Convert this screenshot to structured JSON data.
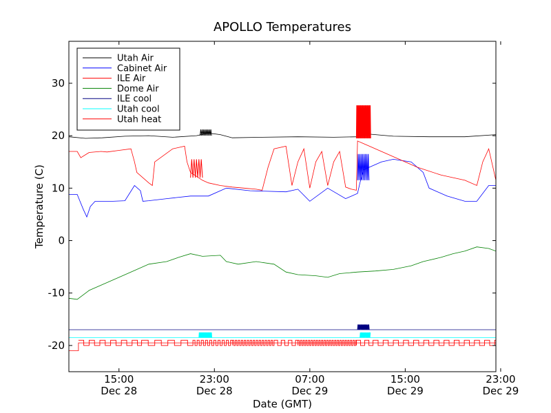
{
  "chart_data": {
    "type": "line",
    "title": "APOLLO Temperatures",
    "xlabel": "Date (GMT)",
    "ylabel": "Temperature (C)",
    "xlim": [
      10.8,
      46.6
    ],
    "ylim": [
      -25,
      38
    ],
    "yticks": [
      {
        "value": 30,
        "label": "30"
      },
      {
        "value": 20,
        "label": "20"
      },
      {
        "value": 10,
        "label": "10"
      },
      {
        "value": 0,
        "label": "0"
      },
      {
        "value": -10,
        "label": "-10"
      },
      {
        "value": -20,
        "label": "-20"
      }
    ],
    "xticks": [
      {
        "hour": 15,
        "time": "15:00",
        "date": "Dec 28"
      },
      {
        "hour": 23,
        "time": "23:00",
        "date": "Dec 28"
      },
      {
        "hour": 31,
        "time": "07:00",
        "date": "Dec 29"
      },
      {
        "hour": 39,
        "time": "15:00",
        "date": "Dec 29"
      },
      {
        "hour": 47,
        "time": "23:00",
        "date": "Dec 29"
      }
    ],
    "legend_position": "top-left",
    "series": [
      {
        "name": "Utah Air",
        "color": "#000000",
        "x": [
          10.8,
          12.2,
          13.6,
          15.5,
          17.5,
          19.5,
          21.5,
          22.5,
          23.5,
          24.5,
          27.0,
          30.0,
          33.0,
          35.0,
          35.5,
          36.0,
          38.0,
          41.0,
          44.0,
          46.6
        ],
        "y": [
          19.8,
          19.5,
          19.6,
          19.9,
          20.0,
          19.7,
          20.0,
          20.5,
          20.2,
          19.6,
          19.7,
          19.8,
          19.7,
          19.8,
          20.0,
          20.3,
          19.9,
          19.8,
          19.8,
          20.2
        ]
      },
      {
        "name": "Cabinet Air",
        "color": "#0000ff",
        "x": [
          10.8,
          11.5,
          12.0,
          12.3,
          12.6,
          13.0,
          14.5,
          15.5,
          16.3,
          16.8,
          17.0,
          17.5,
          19.0,
          21.0,
          22.5,
          23.5,
          24.0,
          26.0,
          29.0,
          30.0,
          31.0,
          32.5,
          34.0,
          35.0,
          35.2,
          35.5,
          36.0,
          37.0,
          38.0,
          39.5,
          40.5,
          41.0,
          41.5,
          42.5,
          44.0,
          45.0,
          46.0,
          46.6
        ],
        "y": [
          8.8,
          8.8,
          6.0,
          4.5,
          6.5,
          7.5,
          7.5,
          7.6,
          10.5,
          9.5,
          7.5,
          7.6,
          8.0,
          8.5,
          8.5,
          9.5,
          10.0,
          9.5,
          9.3,
          9.8,
          7.5,
          10.0,
          8.0,
          9.0,
          11.0,
          13.5,
          14.0,
          15.0,
          15.5,
          15.0,
          13.0,
          10.0,
          9.5,
          8.5,
          7.5,
          7.5,
          10.5,
          10.5
        ]
      },
      {
        "name": "ILE Air",
        "color": "#ff0000",
        "x": [
          10.8,
          11.5,
          11.8,
          12.5,
          13.5,
          14.0,
          15.0,
          16.0,
          16.3,
          16.5,
          17.5,
          17.8,
          18.0,
          19.5,
          20.5,
          20.7,
          21.0,
          22.0,
          22.5,
          23.5,
          24.5,
          25.5,
          26.5,
          27.0,
          27.5,
          28.0,
          29.0,
          29.5,
          30.0,
          30.5,
          31.0,
          31.5,
          32.0,
          32.5,
          33.0,
          33.5,
          34.0,
          34.5,
          34.9,
          35.0,
          35.5,
          36.0,
          38.0,
          40.0,
          42.0,
          44.0,
          45.0,
          45.5,
          46.0,
          46.6
        ],
        "y": [
          17.0,
          17.0,
          15.8,
          16.8,
          17.0,
          16.9,
          17.2,
          17.5,
          15.0,
          13.0,
          11.0,
          10.5,
          15.0,
          17.5,
          18.0,
          15.0,
          13.0,
          11.5,
          11.0,
          10.5,
          10.2,
          10.0,
          9.8,
          9.6,
          14.0,
          17.5,
          18.0,
          10.5,
          15.0,
          17.5,
          10.0,
          15.0,
          17.0,
          10.5,
          15.0,
          17.0,
          10.2,
          9.8,
          9.6,
          19.0,
          18.5,
          18.0,
          16.0,
          14.0,
          12.5,
          11.5,
          10.5,
          15.0,
          17.5,
          11.5
        ]
      },
      {
        "name": "Dome Air",
        "color": "#008000",
        "x": [
          10.8,
          11.5,
          12.5,
          14.0,
          16.0,
          17.5,
          19.0,
          20.0,
          21.0,
          22.0,
          23.5,
          24.0,
          25.0,
          26.5,
          28.0,
          29.0,
          30.0,
          31.5,
          32.5,
          33.5,
          35.0,
          36.5,
          38.0,
          39.5,
          40.5,
          42.0,
          43.0,
          44.0,
          45.0,
          46.0,
          46.6
        ],
        "y": [
          -11.0,
          -11.2,
          -9.5,
          -8.0,
          -6.0,
          -4.5,
          -4.0,
          -3.2,
          -2.5,
          -3.0,
          -2.8,
          -4.0,
          -4.5,
          -4.0,
          -4.5,
          -6.0,
          -6.5,
          -6.7,
          -7.0,
          -6.3,
          -6.0,
          -5.8,
          -5.5,
          -4.8,
          -4.0,
          -3.2,
          -2.5,
          -2.0,
          -1.2,
          -1.5,
          -2.0
        ]
      },
      {
        "name": "ILE cool",
        "color": "#000080",
        "x": [
          10.8,
          46.6
        ],
        "y": [
          -17.0,
          -17.0
        ]
      },
      {
        "name": "Utah cool",
        "color": "#00ffff",
        "x": [
          10.8,
          46.6
        ],
        "y": [
          -18.5,
          -18.5
        ]
      },
      {
        "name": "Utah heat",
        "color": "#ff0000",
        "x": [
          10.8,
          11.6,
          11.6,
          46.6
        ],
        "y": [
          -21.0,
          -21.0,
          -19.5,
          -19.5
        ]
      }
    ],
    "bursts": [
      {
        "series": "Utah Air",
        "color": "#000000",
        "x0": 21.8,
        "x1": 22.8,
        "period": 0.12,
        "low": 20.0,
        "high": 21.2
      },
      {
        "series": "ILE Air",
        "color": "#ff0000",
        "x0": 21.0,
        "x1": 22.0,
        "period": 0.2,
        "low": 12.0,
        "high": 15.5
      },
      {
        "series": "ILE Air",
        "color": "#ff0000",
        "x0": 34.9,
        "x1": 36.1,
        "period": 0.06,
        "low": 19.5,
        "high": 25.8
      },
      {
        "series": "Cabinet Air",
        "color": "#0000ff",
        "x0": 35.0,
        "x1": 36.0,
        "period": 0.12,
        "low": 11.5,
        "high": 16.5
      },
      {
        "series": "ILE cool",
        "color": "#000080",
        "x0": 35.0,
        "x1": 36.0,
        "period": 0.07,
        "low": -17.0,
        "high": -16.0
      },
      {
        "series": "Utah cool",
        "color": "#00ffff",
        "x0": 21.7,
        "x1": 22.8,
        "period": 0.06,
        "low": -18.5,
        "high": -17.5
      },
      {
        "series": "Utah cool",
        "color": "#00ffff",
        "x0": 35.2,
        "x1": 36.1,
        "period": 0.07,
        "low": -18.5,
        "high": -17.5
      }
    ],
    "pulses": [
      {
        "series": "Utah heat",
        "color": "#ff0000",
        "x0": 11.6,
        "x1": 46.6,
        "low": -20.0,
        "high": -19.0,
        "segments": [
          [
            11.6,
            16.9,
            0.9
          ],
          [
            16.9,
            21.2,
            1.1
          ],
          [
            21.2,
            24.5,
            0.35
          ],
          [
            24.5,
            28.0,
            0.25
          ],
          [
            28.0,
            30.0,
            0.6
          ],
          [
            30.0,
            34.9,
            0.22
          ],
          [
            34.9,
            36.3,
            0.7
          ],
          [
            36.3,
            46.6,
            0.85
          ]
        ]
      }
    ]
  }
}
